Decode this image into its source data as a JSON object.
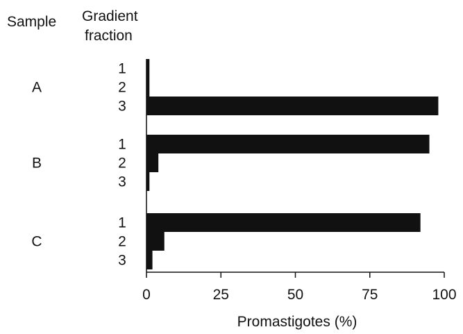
{
  "chart_data": {
    "type": "bar",
    "orientation": "horizontal",
    "header": {
      "sample_label": "Sample",
      "fraction_label_line1": "Gradient",
      "fraction_label_line2": "fraction"
    },
    "groups": [
      {
        "sample": "A",
        "fractions": [
          {
            "label": "1",
            "value": 1
          },
          {
            "label": "2",
            "value": 1
          },
          {
            "label": "3",
            "value": 98
          }
        ]
      },
      {
        "sample": "B",
        "fractions": [
          {
            "label": "1",
            "value": 95
          },
          {
            "label": "2",
            "value": 4
          },
          {
            "label": "3",
            "value": 1
          }
        ]
      },
      {
        "sample": "C",
        "fractions": [
          {
            "label": "1",
            "value": 92
          },
          {
            "label": "2",
            "value": 6
          },
          {
            "label": "3",
            "value": 2
          }
        ]
      }
    ],
    "xlabel": "Promastigotes (%)",
    "xlim": [
      0,
      100
    ],
    "xticks": [
      "0",
      "25",
      "50",
      "75",
      "100"
    ],
    "grid": false,
    "bar_color": "#111111"
  }
}
